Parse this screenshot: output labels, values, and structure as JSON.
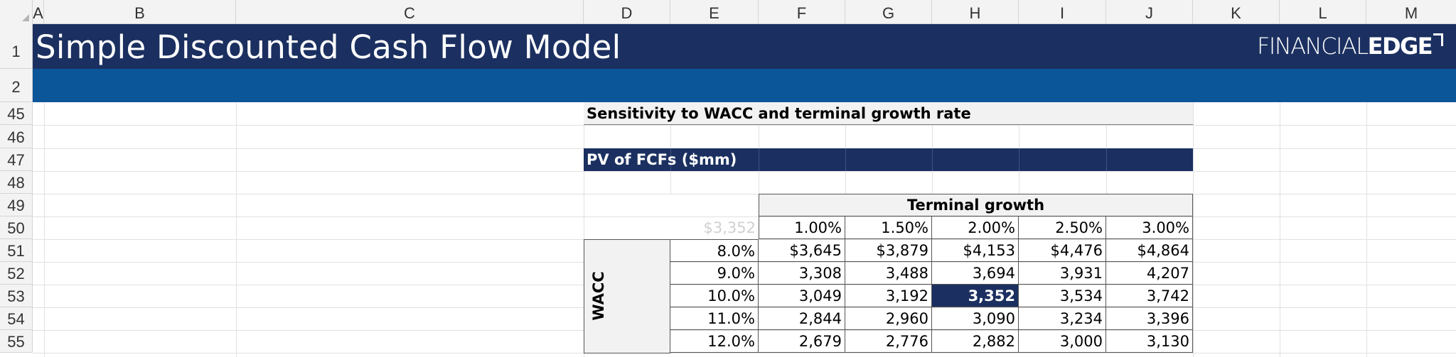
{
  "columns": [
    "A",
    "B",
    "C",
    "D",
    "E",
    "F",
    "G",
    "H",
    "I",
    "J",
    "K",
    "L",
    "M"
  ],
  "rows": [
    "1",
    "2",
    "45",
    "46",
    "47",
    "48",
    "49",
    "50",
    "51",
    "52",
    "53",
    "54",
    "55"
  ],
  "title": "Simple Discounted Cash Flow Model",
  "logo": {
    "light": "FINANCIAL",
    "bold": "EDGE"
  },
  "sensitivity": {
    "header": "Sensitivity to WACC and terminal growth rate",
    "pv_header": "PV of FCFs ($mm)",
    "corner_value": "$3,352",
    "terminal_growth_label": "Terminal growth",
    "wacc_label": "WACC",
    "growth_rates": [
      "1.00%",
      "1.50%",
      "2.00%",
      "2.50%",
      "3.00%"
    ],
    "wacc_rates": [
      "8.0%",
      "9.0%",
      "10.0%",
      "11.0%",
      "12.0%"
    ],
    "values": [
      [
        "$3,645",
        "$3,879",
        "$4,153",
        "$4,476",
        "$4,864"
      ],
      [
        "3,308",
        "3,488",
        "3,694",
        "3,931",
        "4,207"
      ],
      [
        "3,049",
        "3,192",
        "3,352",
        "3,534",
        "3,742"
      ],
      [
        "2,844",
        "2,960",
        "3,090",
        "3,234",
        "3,396"
      ],
      [
        "2,679",
        "2,776",
        "2,882",
        "3,000",
        "3,130"
      ]
    ],
    "highlight_color": "#1b3060"
  },
  "colors": {
    "title_band": "#1b3060",
    "sub_band": "#0b5599"
  }
}
